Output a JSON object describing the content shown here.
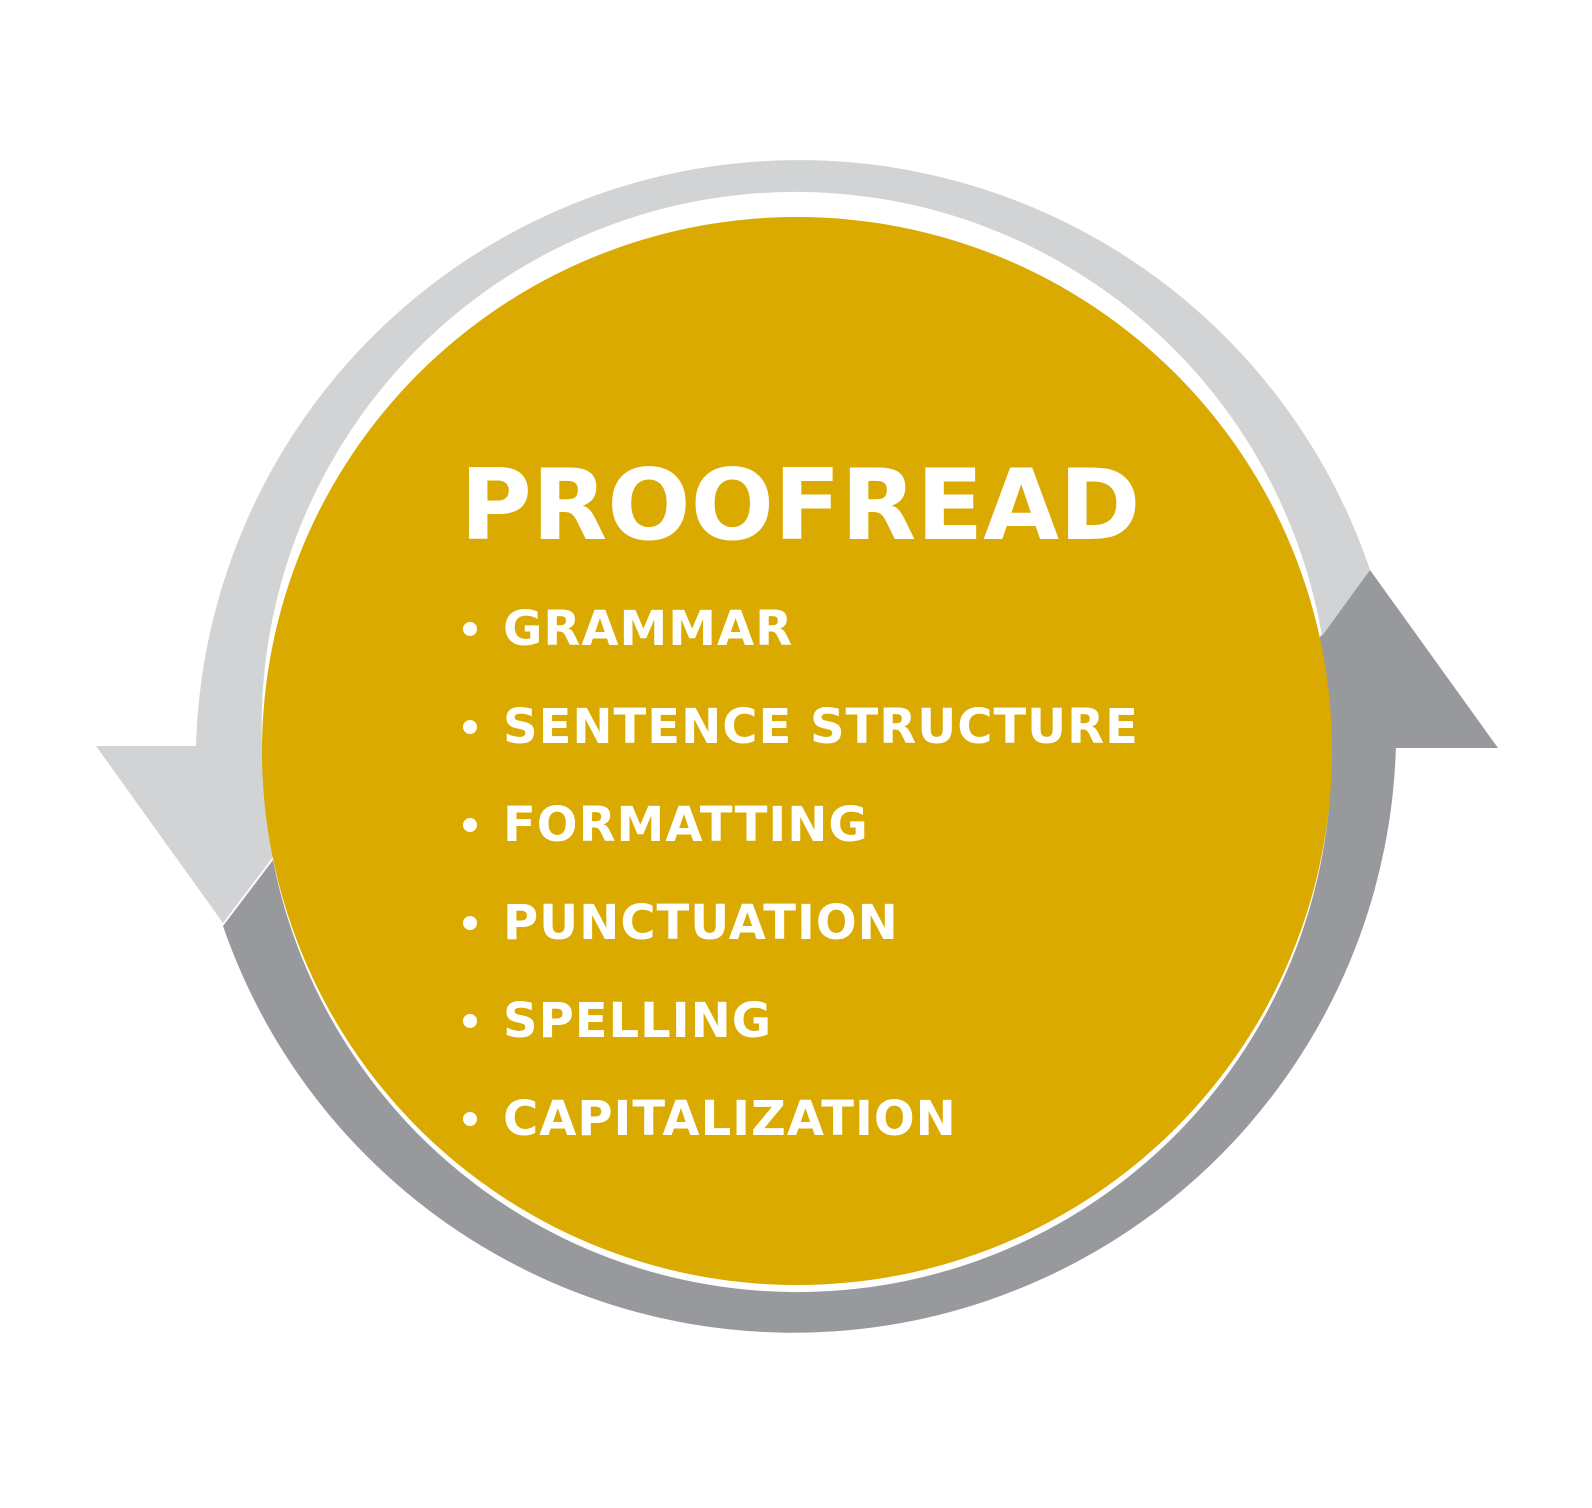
{
  "title": "PROOFREAD",
  "items": [
    "GRAMMAR",
    "SENTENCE STRUCTURE",
    "FORMATTING",
    "PUNCTUATION",
    "SPELLING",
    "CAPITALIZATION"
  ],
  "colors": {
    "circle_fill": "#DAAA00",
    "arrow_light": "#D1D3D4",
    "arrow_dark": "#97999C",
    "text": "#FFFFFF"
  }
}
